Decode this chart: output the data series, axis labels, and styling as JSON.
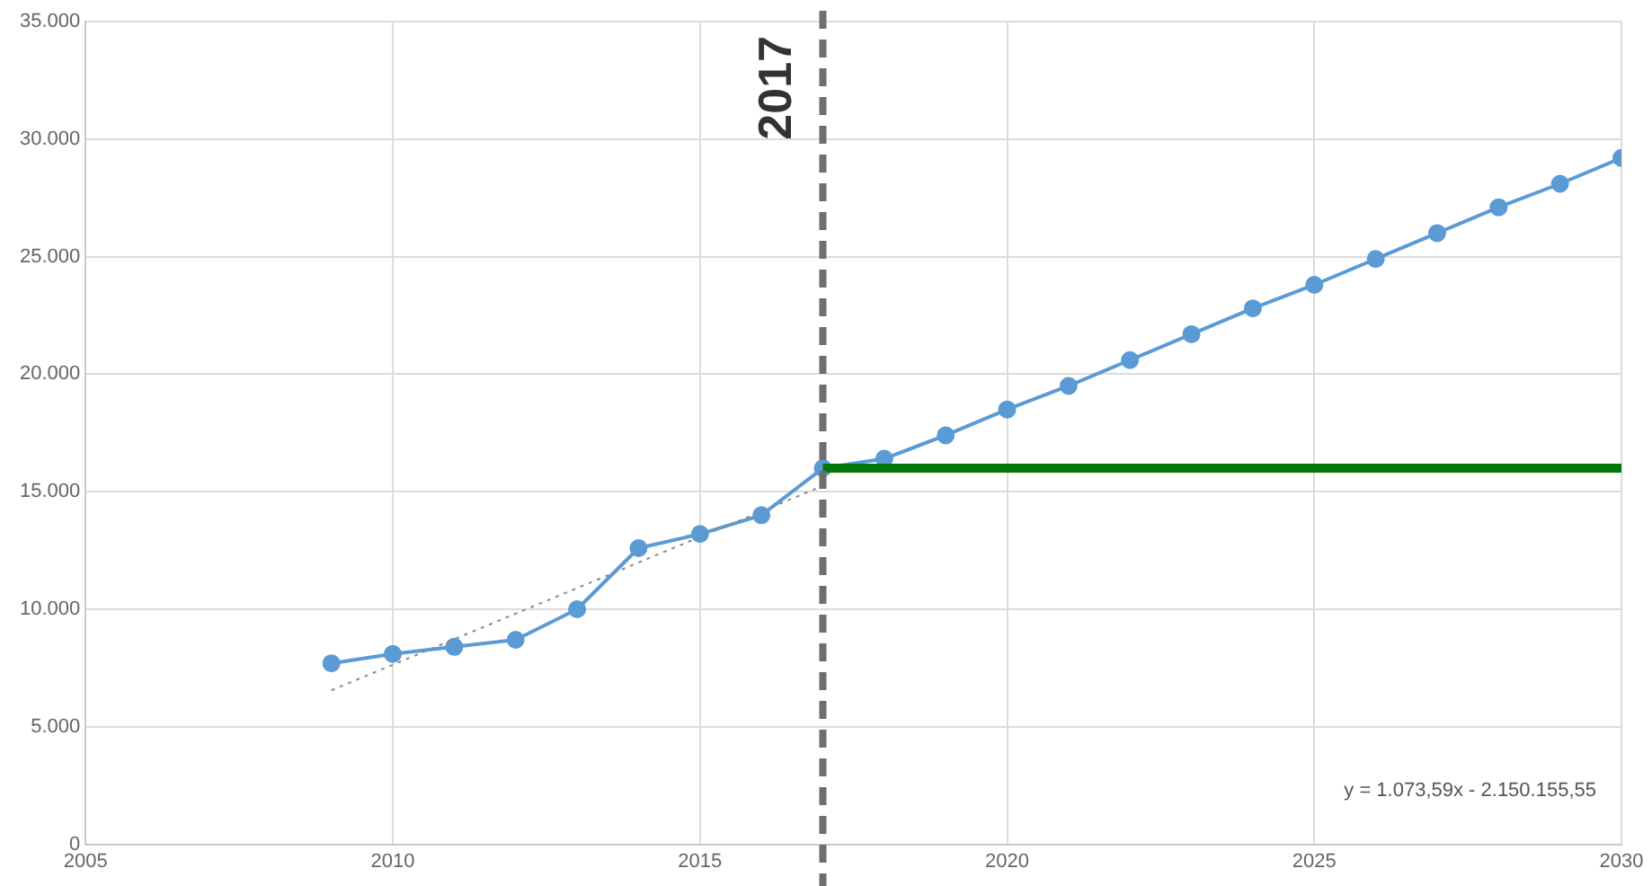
{
  "chart_data": {
    "type": "line",
    "x": [
      2009,
      2010,
      2011,
      2012,
      2013,
      2014,
      2015,
      2016,
      2017,
      2018,
      2019,
      2020,
      2021,
      2022,
      2023,
      2024,
      2025,
      2026,
      2027,
      2028,
      2029,
      2030
    ],
    "series": [
      {
        "color": "#5b9bd5",
        "values": [
          7700,
          8100,
          8400,
          8700,
          10000,
          12600,
          13200,
          14000,
          16000,
          16400,
          17400,
          18500,
          19500,
          20600,
          21700,
          22800,
          23800,
          24900,
          26000,
          27100,
          28100,
          29200
        ]
      },
      {
        "type": "line",
        "color": "#00780a",
        "x": [
          2017,
          2030
        ],
        "values": [
          16000,
          16000
        ],
        "marker": "none"
      },
      {
        "type": "line",
        "color": "#8c8c8c",
        "x": [
          2009,
          2017
        ],
        "values": [
          6550,
          15250
        ],
        "marker": "none",
        "line_style": "dotted"
      }
    ],
    "xlim": [
      2005,
      2030
    ],
    "xticks": [
      2005,
      2010,
      2015,
      2020,
      2025,
      2030
    ],
    "ylim": [
      0,
      35000
    ],
    "yticks": [
      0,
      {
        "value": 5000,
        "label": "5.000"
      },
      {
        "value": 10000,
        "label": "10.000"
      },
      {
        "value": 15000,
        "label": "15.000"
      },
      {
        "value": 20000,
        "label": "20.000"
      },
      {
        "value": 25000,
        "label": "25.000"
      },
      {
        "value": 30000,
        "label": "30.000"
      },
      {
        "value": 35000,
        "label": "35.000"
      }
    ],
    "ref_lines": [
      {
        "axis": "x",
        "value": 2017,
        "label": "2017",
        "color": "#6e6e6e",
        "line_style": "dashed"
      }
    ],
    "annotations": [
      "y = 1.073,59x - 2.150.155,55"
    ],
    "grid": true,
    "marker": "circle",
    "line_style": "solid"
  }
}
